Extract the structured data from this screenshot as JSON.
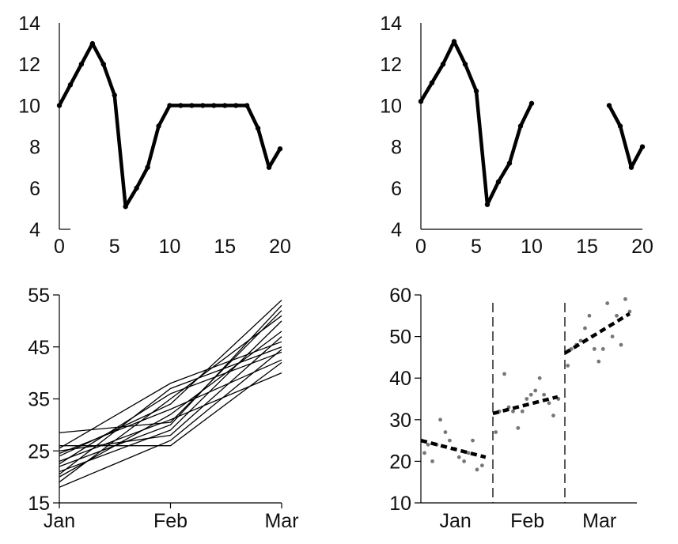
{
  "chart_data": [
    {
      "type": "line",
      "title": "",
      "xlabel": "",
      "ylabel": "",
      "xlim": [
        0,
        20
      ],
      "ylim": [
        4,
        14
      ],
      "xticks": [
        0,
        5,
        10,
        15,
        20
      ],
      "yticks": [
        4,
        6,
        8,
        10,
        12,
        14
      ],
      "grid": false,
      "series": [
        {
          "x": [
            0,
            1,
            2,
            3,
            4,
            5,
            6,
            7,
            8,
            9,
            10,
            11,
            12,
            13,
            14,
            15,
            16,
            17,
            18,
            19,
            20
          ],
          "values": [
            10,
            11,
            12,
            13,
            12,
            10.5,
            5.1,
            6,
            7,
            9,
            10,
            10,
            10,
            10,
            10,
            10,
            10,
            10,
            8.9,
            7,
            7.9
          ]
        }
      ]
    },
    {
      "type": "line",
      "title": "",
      "xlabel": "",
      "ylabel": "",
      "xlim": [
        0,
        20
      ],
      "ylim": [
        4,
        14
      ],
      "xticks": [
        0,
        5,
        10,
        15,
        20
      ],
      "yticks": [
        4,
        6,
        8,
        10,
        12,
        14
      ],
      "grid": false,
      "series": [
        {
          "x": [
            0,
            1,
            2,
            3,
            4,
            5,
            6,
            7,
            8,
            9,
            10,
            11,
            12,
            13,
            14,
            15,
            16,
            17,
            18,
            19,
            20
          ],
          "values": [
            10.2,
            11.1,
            12,
            13.1,
            12,
            10.7,
            5.2,
            6.3,
            7.2,
            9,
            10.1,
            null,
            null,
            null,
            null,
            null,
            null,
            10,
            9,
            7,
            8
          ]
        }
      ]
    },
    {
      "type": "line",
      "title": "",
      "xlabel": "",
      "ylabel": "",
      "categories": [
        "Jan",
        "Feb",
        "Mar"
      ],
      "ylim": [
        15,
        55
      ],
      "yticks": [
        15,
        25,
        35,
        45,
        55
      ],
      "grid": false,
      "series": [
        {
          "values": [
            28.5,
            30.5,
            52
          ]
        },
        {
          "values": [
            25.5,
            38,
            46
          ]
        },
        {
          "values": [
            24,
            34,
            54
          ]
        },
        {
          "values": [
            22.5,
            36,
            44
          ]
        },
        {
          "values": [
            21,
            29,
            50
          ]
        },
        {
          "values": [
            26,
            26,
            42
          ]
        },
        {
          "values": [
            20,
            32,
            48
          ]
        },
        {
          "values": [
            23,
            31,
            40
          ]
        },
        {
          "values": [
            19,
            35,
            51
          ]
        },
        {
          "values": [
            18,
            27,
            44.5
          ]
        },
        {
          "values": [
            24.5,
            33,
            42.5
          ]
        },
        {
          "values": [
            22,
            30,
            53
          ]
        },
        {
          "values": [
            20.5,
            37,
            45
          ]
        },
        {
          "values": [
            25,
            28,
            47
          ]
        }
      ]
    },
    {
      "type": "scatter",
      "title": "",
      "xlabel": "",
      "ylabel": "",
      "categories": [
        "Jan",
        "Feb",
        "Mar"
      ],
      "ylim": [
        10,
        60
      ],
      "yticks": [
        10,
        20,
        30,
        40,
        50,
        60
      ],
      "grid": false,
      "points": [
        {
          "x": 1.05,
          "y": 22
        },
        {
          "x": 1.1,
          "y": 24
        },
        {
          "x": 1.16,
          "y": 20
        },
        {
          "x": 1.22,
          "y": 24
        },
        {
          "x": 1.27,
          "y": 30
        },
        {
          "x": 1.34,
          "y": 27
        },
        {
          "x": 1.4,
          "y": 25
        },
        {
          "x": 1.47,
          "y": 23
        },
        {
          "x": 1.53,
          "y": 21
        },
        {
          "x": 1.6,
          "y": 20
        },
        {
          "x": 1.66,
          "y": 22
        },
        {
          "x": 1.72,
          "y": 25
        },
        {
          "x": 1.78,
          "y": 18
        },
        {
          "x": 1.85,
          "y": 19
        },
        {
          "x": 2.04,
          "y": 27
        },
        {
          "x": 2.09,
          "y": 32
        },
        {
          "x": 2.16,
          "y": 41
        },
        {
          "x": 2.22,
          "y": 33
        },
        {
          "x": 2.28,
          "y": 32
        },
        {
          "x": 2.35,
          "y": 28
        },
        {
          "x": 2.41,
          "y": 32
        },
        {
          "x": 2.47,
          "y": 35
        },
        {
          "x": 2.53,
          "y": 36
        },
        {
          "x": 2.59,
          "y": 37
        },
        {
          "x": 2.65,
          "y": 40
        },
        {
          "x": 2.71,
          "y": 36
        },
        {
          "x": 2.78,
          "y": 34
        },
        {
          "x": 2.84,
          "y": 31
        },
        {
          "x": 2.91,
          "y": 35
        },
        {
          "x": 3.04,
          "y": 43
        },
        {
          "x": 3.09,
          "y": 47
        },
        {
          "x": 3.16,
          "y": 48
        },
        {
          "x": 3.22,
          "y": 49
        },
        {
          "x": 3.28,
          "y": 52
        },
        {
          "x": 3.34,
          "y": 55
        },
        {
          "x": 3.41,
          "y": 47
        },
        {
          "x": 3.47,
          "y": 44
        },
        {
          "x": 3.53,
          "y": 47
        },
        {
          "x": 3.59,
          "y": 58
        },
        {
          "x": 3.66,
          "y": 50
        },
        {
          "x": 3.72,
          "y": 55
        },
        {
          "x": 3.78,
          "y": 48
        },
        {
          "x": 3.84,
          "y": 59
        },
        {
          "x": 3.9,
          "y": 56
        }
      ],
      "trend_segments": [
        {
          "x": [
            1.0,
            1.9
          ],
          "y": [
            25,
            21
          ]
        },
        {
          "x": [
            2.0,
            2.9
          ],
          "y": [
            31.5,
            35.5
          ]
        },
        {
          "x": [
            3.0,
            3.9
          ],
          "y": [
            46,
            55.5
          ]
        }
      ],
      "separators": [
        2.0,
        3.0
      ]
    }
  ]
}
